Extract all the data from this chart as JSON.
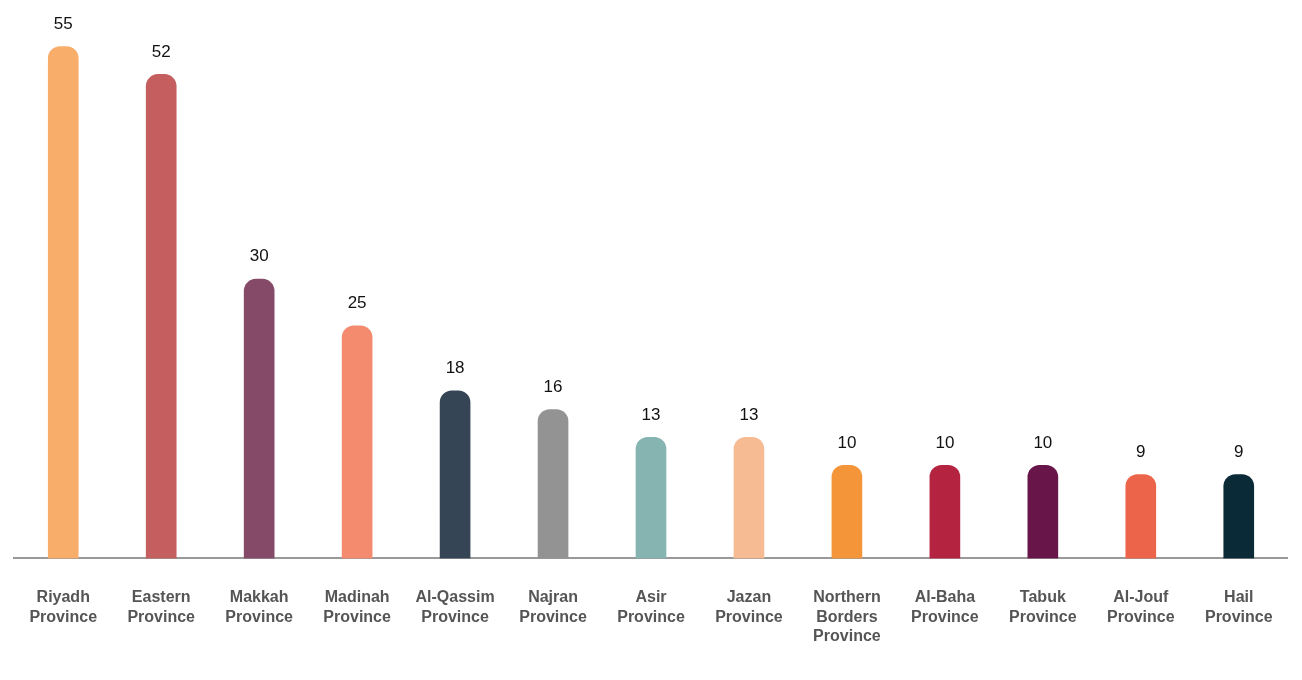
{
  "chart_data": {
    "type": "bar",
    "categories": [
      "Riyadh Province",
      "Eastern Province",
      "Makkah Province",
      "Madinah Province",
      "Al-Qassim Province",
      "Najran Province",
      "Asir Province",
      "Jazan Province",
      "Northern Borders Province",
      "Al-Baha Province",
      "Tabuk Province",
      "Al-Jouf Province",
      "Hail Province"
    ],
    "values": [
      55,
      52,
      30,
      25,
      18,
      16,
      13,
      13,
      10,
      10,
      10,
      9,
      9
    ],
    "colors": [
      "#f9ad6a",
      "#c55e5e",
      "#844a67",
      "#f48b6e",
      "#354556",
      "#939393",
      "#86b5b1",
      "#f7bb94",
      "#f5953a",
      "#b42440",
      "#68164a",
      "#ec654b",
      "#0a2a37"
    ],
    "data_labels": true
  }
}
